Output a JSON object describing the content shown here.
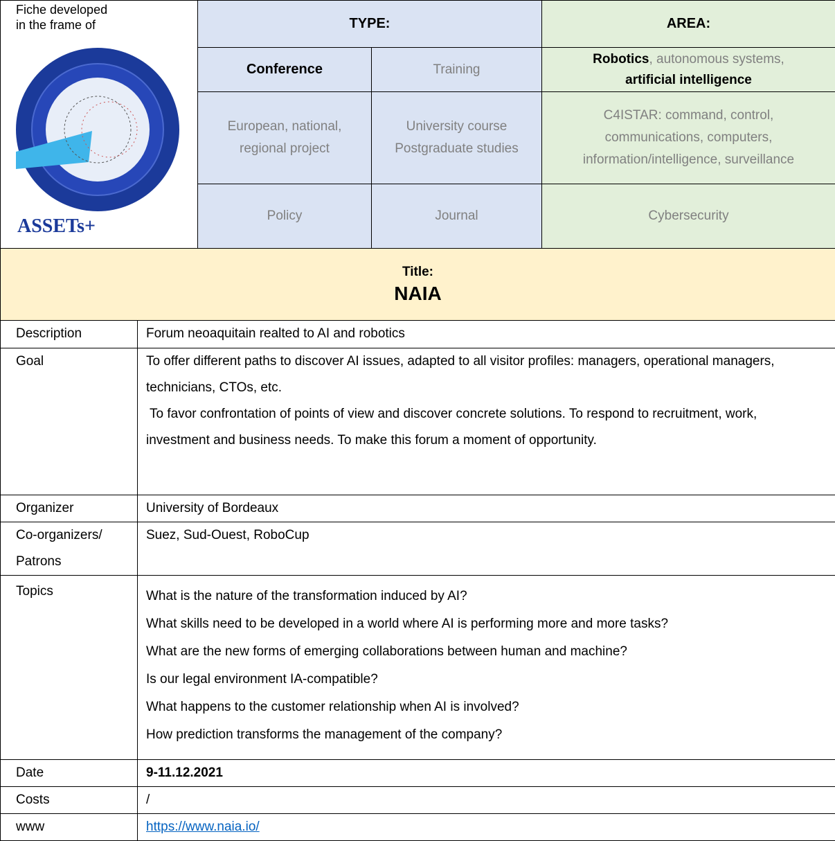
{
  "header": {
    "logo_caption": [
      "Fiche developed",
      "in the frame of"
    ],
    "logo_text": "ASSETs+",
    "type_label": "TYPE:",
    "area_label": "AREA:",
    "type_cells": [
      [
        "Conference",
        "Training"
      ],
      [
        "European, national, regional project",
        "University course Postgraduate studies"
      ],
      [
        "Policy",
        "Journal"
      ]
    ],
    "area_cells": [
      {
        "bold1": "Robotics",
        "normal": ", autonomous systems,",
        "bold2": "artificial intelligence"
      },
      "C4ISTAR: command, control, communications, computers, information/intelligence, surveillance",
      "Cybersecurity"
    ]
  },
  "title": {
    "label": "Title:",
    "text": "NAIA"
  },
  "table": {
    "description": {
      "label": "Description",
      "value": "Forum neoaquitain realted to AI and robotics"
    },
    "goal": {
      "label": "Goal",
      "paragraphs": [
        "To offer different paths to discover AI issues, adapted to all visitor profiles: managers, operational managers, technicians, CTOs, etc.",
        "To favor confrontation of points of view and  discover concrete solutions. To respond to recruitment, work, investment and business needs. To make this forum a moment of opportunity."
      ]
    },
    "organizer": {
      "label": "Organizer",
      "value": "University of Bordeaux"
    },
    "co_organizers": {
      "label": [
        "Co-organizers/",
        "Patrons"
      ],
      "value": "Suez, Sud-Ouest, RoboCup"
    },
    "topics": {
      "label": "Topics",
      "items": [
        "What is the nature of the transformation induced by AI?",
        "What skills need to be developed in a world where AI is performing more and more tasks?",
        "What are the new forms of emerging collaborations between human and machine?",
        "Is our legal environment IA-compatible?",
        "What happens to the customer relationship when AI is involved?",
        "How prediction transforms the management of the company?"
      ]
    },
    "date": {
      "label": "Date",
      "value": "9-11.12.2021"
    },
    "costs": {
      "label": "Costs",
      "value": "/"
    },
    "www": {
      "label": "www",
      "value": "https://www.naia.io/"
    }
  }
}
